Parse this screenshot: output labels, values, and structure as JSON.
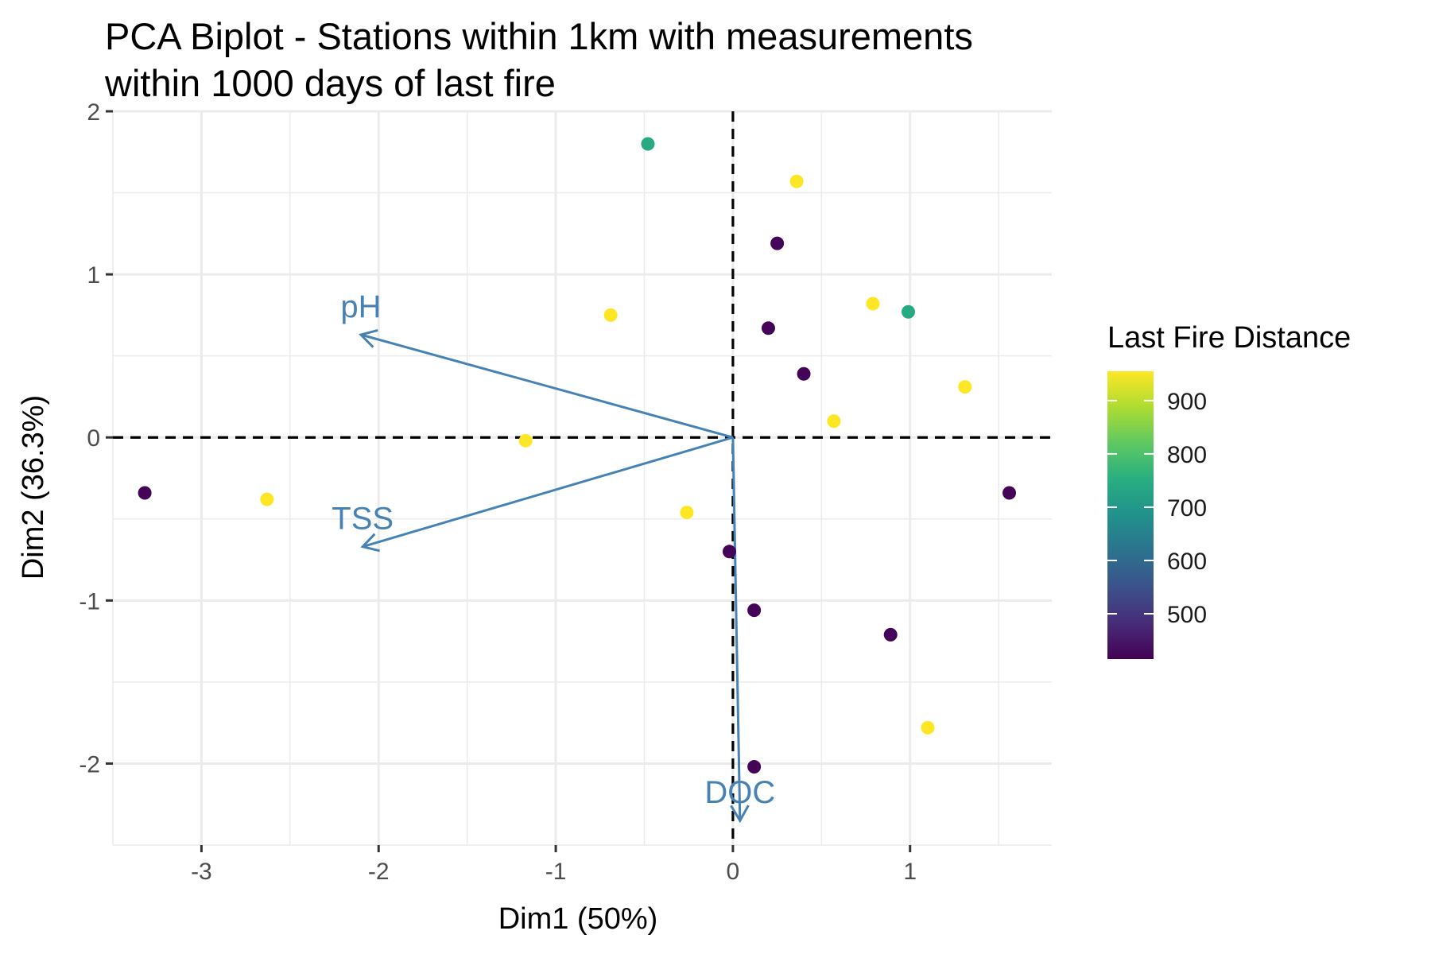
{
  "chart_data": {
    "type": "scatter",
    "title": [
      "PCA Biplot - Stations within 1km with measurements",
      "within 1000 days of last fire"
    ],
    "xlabel": "Dim1 (50%)",
    "ylabel": "Dim2 (36.3%)",
    "xlim": [
      -3.5,
      1.8
    ],
    "ylim": [
      -2.5,
      2.0
    ],
    "x_ticks": [
      -3,
      -2,
      -1,
      0,
      1
    ],
    "x_tick_labels": [
      "-3",
      "-2",
      "-1",
      "0",
      "1"
    ],
    "y_ticks": [
      -2,
      -1,
      0,
      1,
      2
    ],
    "y_tick_labels": [
      "-2",
      "-1",
      "0",
      "1",
      "2"
    ],
    "grid": true,
    "reference_lines": {
      "x": 0,
      "y": 0,
      "style": "dashed"
    },
    "legend": {
      "title": "Last Fire Distance",
      "position": "right",
      "range": [
        415,
        955
      ],
      "ticks": [
        500,
        600,
        700,
        800,
        900
      ],
      "tick_labels": [
        "500",
        "600",
        "700",
        "800",
        "900"
      ]
    },
    "points": [
      {
        "x": -0.48,
        "y": 1.8,
        "color_value": 740
      },
      {
        "x": 0.36,
        "y": 1.57,
        "color_value": 955
      },
      {
        "x": 0.25,
        "y": 1.19,
        "color_value": 420
      },
      {
        "x": -0.69,
        "y": 0.75,
        "color_value": 955
      },
      {
        "x": 0.79,
        "y": 0.82,
        "color_value": 955
      },
      {
        "x": 0.99,
        "y": 0.77,
        "color_value": 740
      },
      {
        "x": 0.2,
        "y": 0.67,
        "color_value": 420
      },
      {
        "x": 0.4,
        "y": 0.39,
        "color_value": 420
      },
      {
        "x": 1.31,
        "y": 0.31,
        "color_value": 955
      },
      {
        "x": 0.57,
        "y": 0.1,
        "color_value": 955
      },
      {
        "x": -1.17,
        "y": -0.02,
        "color_value": 955
      },
      {
        "x": -3.32,
        "y": -0.34,
        "color_value": 420
      },
      {
        "x": -2.63,
        "y": -0.38,
        "color_value": 955
      },
      {
        "x": -0.26,
        "y": -0.46,
        "color_value": 955
      },
      {
        "x": 1.56,
        "y": -0.34,
        "color_value": 420
      },
      {
        "x": -0.02,
        "y": -0.7,
        "color_value": 420
      },
      {
        "x": 0.12,
        "y": -1.06,
        "color_value": 420
      },
      {
        "x": 0.89,
        "y": -1.21,
        "color_value": 420
      },
      {
        "x": 1.1,
        "y": -1.78,
        "color_value": 955
      },
      {
        "x": 0.12,
        "y": -2.02,
        "color_value": 420
      }
    ],
    "variables": [
      {
        "name": "pH",
        "x": -2.1,
        "y": 0.63
      },
      {
        "name": "TSS",
        "x": -2.09,
        "y": -0.67
      },
      {
        "name": "DOC",
        "x": 0.04,
        "y": -2.35
      }
    ],
    "variable_color": "#4682b4",
    "colormap": "viridis"
  }
}
